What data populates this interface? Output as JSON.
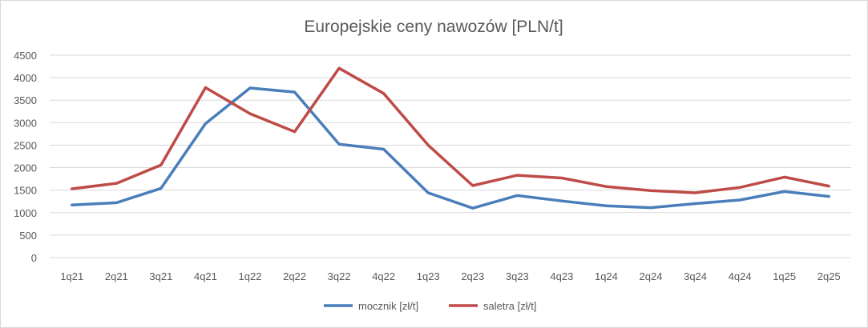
{
  "chart_data": {
    "type": "line",
    "title": "Europejskie ceny nawozów [PLN/t]",
    "xlabel": "",
    "ylabel": "",
    "categories": [
      "1q21",
      "2q21",
      "3q21",
      "4q21",
      "1q22",
      "2q22",
      "3q22",
      "4q22",
      "1q23",
      "2q23",
      "3q23",
      "4q23",
      "1q24",
      "2q24",
      "3q24",
      "4q24",
      "1q25",
      "2q25"
    ],
    "ylim": [
      0,
      4500
    ],
    "yticks": [
      0,
      500,
      1000,
      1500,
      2000,
      2500,
      3000,
      3500,
      4000,
      4500
    ],
    "grid": true,
    "legend_position": "bottom",
    "series": [
      {
        "name": "mocznik [zł/t]",
        "color": "#4a7ebb",
        "values": [
          1170,
          1220,
          1540,
          2980,
          3770,
          3680,
          2520,
          2410,
          1440,
          1100,
          1380,
          1260,
          1150,
          1110,
          1200,
          1280,
          1470,
          1360
        ]
      },
      {
        "name": "saletra [zł/t]",
        "color": "#be4b48",
        "values": [
          1530,
          1650,
          2060,
          3780,
          3200,
          2800,
          4210,
          3650,
          2500,
          1600,
          1830,
          1770,
          1580,
          1490,
          1440,
          1560,
          1790,
          1590
        ]
      }
    ]
  }
}
